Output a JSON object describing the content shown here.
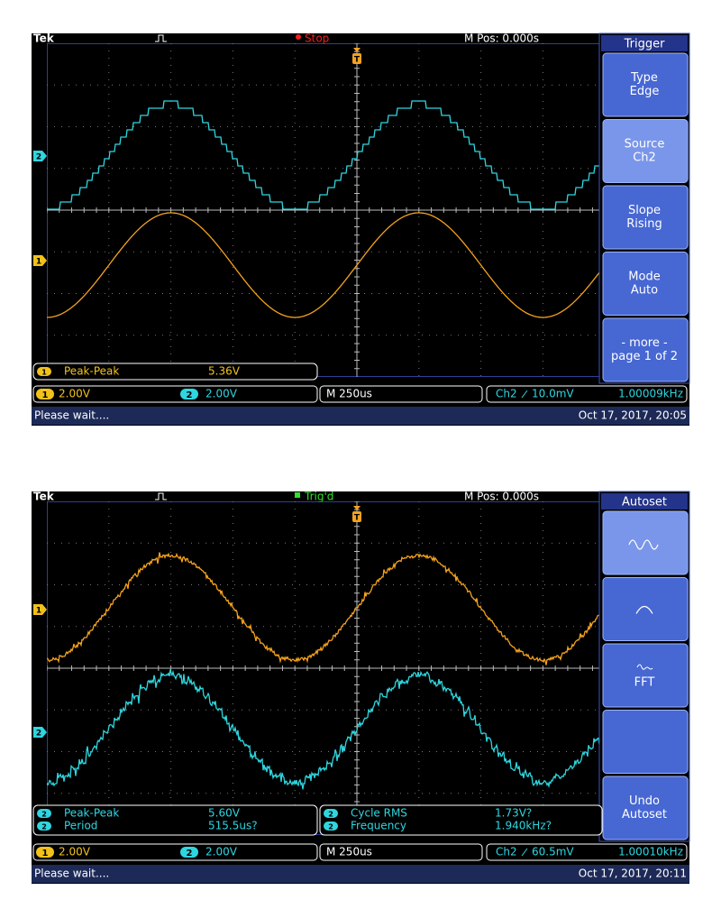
{
  "scopes": [
    {
      "header": {
        "brand": "Tek",
        "status": "Stop",
        "m_pos": "M Pos: 0.000s"
      },
      "trigger_marker": "T",
      "channel_markers": [
        "2",
        "1"
      ],
      "menu": {
        "title": "Trigger",
        "buttons": [
          [
            "Type",
            "Edge"
          ],
          [
            "Source",
            "Ch2"
          ],
          [
            "Slope",
            "Rising"
          ],
          [
            "Mode",
            "Auto"
          ],
          [
            "- more -",
            "page 1 of 2"
          ]
        ]
      },
      "measurements": [
        {
          "channel": "1",
          "label": "Peak-Peak",
          "value": "5.36V"
        }
      ],
      "status": {
        "ch1": {
          "number": "1",
          "scale": "2.00V"
        },
        "ch2": {
          "number": "2",
          "scale": "2.00V"
        },
        "timebase": "M 250us",
        "trigger_source": "Ch2",
        "trigger_level": "10.0mV",
        "trigger_frequency": "1.00009kHz"
      },
      "message": "Please wait....",
      "datetime": "Oct 17, 2017, 20:05"
    },
    {
      "header": {
        "brand": "Tek",
        "status": "Trig'd",
        "m_pos": "M Pos: 0.000s"
      },
      "trigger_marker": "T",
      "channel_markers": [
        "1",
        "2"
      ],
      "menu": {
        "title": "Autoset",
        "buttons": [
          [],
          [],
          [
            "FFT"
          ],
          [],
          [
            "Undo",
            "Autoset"
          ]
        ]
      },
      "measurements": [
        {
          "channel": "2",
          "label": "Peak-Peak",
          "value": "5.60V"
        },
        {
          "channel": "2",
          "label": "Period",
          "value": "515.5us?"
        },
        {
          "channel": "2",
          "label": "Cycle RMS",
          "value": "1.73V?"
        },
        {
          "channel": "2",
          "label": "Frequency",
          "value": "1.940kHz?"
        }
      ],
      "status": {
        "ch1": {
          "number": "1",
          "scale": "2.00V"
        },
        "ch2": {
          "number": "2",
          "scale": "2.00V"
        },
        "timebase": "M 250us",
        "trigger_source": "Ch2",
        "trigger_level": "60.5mV",
        "trigger_frequency": "1.00010kHz"
      },
      "message": "Please wait....",
      "datetime": "Oct 17, 2017, 20:11"
    }
  ]
}
